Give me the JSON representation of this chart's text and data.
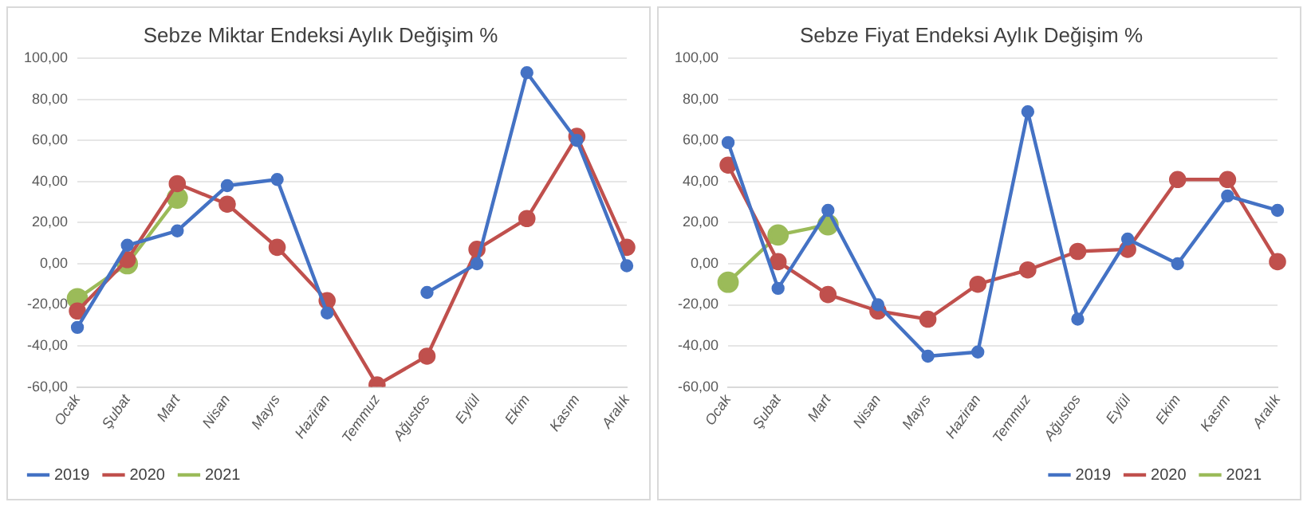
{
  "chart_data": [
    {
      "type": "line",
      "title": "Sebze Miktar Endeksi Aylık Değişim %",
      "categories": [
        "Ocak",
        "Şubat",
        "Mart",
        "Nisan",
        "Mayıs",
        "Haziran",
        "Temmuz",
        "Ağustos",
        "Eylül",
        "Ekim",
        "Kasım",
        "Aralık"
      ],
      "series": [
        {
          "name": "2019",
          "color": "#4472c4",
          "values": [
            -31,
            9,
            16,
            38,
            41,
            -24,
            null,
            -14,
            0,
            93,
            60,
            -1
          ]
        },
        {
          "name": "2020",
          "color": "#c0504d",
          "values": [
            -23,
            2,
            39,
            29,
            8,
            -18,
            -59,
            -45,
            7,
            22,
            62,
            8
          ]
        },
        {
          "name": "2021",
          "color": "#9bbb59",
          "values": [
            -17,
            0,
            32,
            null,
            null,
            null,
            null,
            null,
            null,
            null,
            null,
            null
          ]
        }
      ],
      "ylim": [
        -60,
        100
      ],
      "yticks": [
        {
          "value": -60,
          "label": "-60,00"
        },
        {
          "value": -40,
          "label": "-40,00"
        },
        {
          "value": -20,
          "label": "-20,00"
        },
        {
          "value": 0,
          "label": "0,00"
        },
        {
          "value": 20,
          "label": "20,00"
        },
        {
          "value": 40,
          "label": "40,00"
        },
        {
          "value": 60,
          "label": "60,00"
        },
        {
          "value": 80,
          "label": "80,00"
        },
        {
          "value": 100,
          "label": "100,00"
        }
      ],
      "grid": "y",
      "legend": "bottom left",
      "marker": "circle",
      "line_style": "solid"
    },
    {
      "type": "line",
      "title": "Sebze Fiyat Endeksi Aylık Değişim %",
      "categories": [
        "Ocak",
        "Şubat",
        "Mart",
        "Nisan",
        "Mayıs",
        "Haziran",
        "Temmuz",
        "Ağustos",
        "Eylül",
        "Ekim",
        "Kasım",
        "Aralık"
      ],
      "series": [
        {
          "name": "2019",
          "color": "#4472c4",
          "values": [
            59,
            -12,
            26,
            -20,
            -45,
            -43,
            74,
            -27,
            12,
            0,
            33,
            26
          ]
        },
        {
          "name": "2020",
          "color": "#c0504d",
          "values": [
            48,
            1,
            -15,
            -23,
            -27,
            -10,
            -3,
            6,
            7,
            41,
            41,
            1
          ]
        },
        {
          "name": "2021",
          "color": "#9bbb59",
          "values": [
            -9,
            14,
            19,
            null,
            null,
            null,
            null,
            null,
            null,
            null,
            null,
            null
          ]
        }
      ],
      "ylim": [
        -60,
        100
      ],
      "yticks": [
        {
          "value": -60,
          "label": "-60,00"
        },
        {
          "value": -40,
          "label": "-40,00"
        },
        {
          "value": -20,
          "label": "-20,00"
        },
        {
          "value": 0,
          "label": "0,00"
        },
        {
          "value": 20,
          "label": "20,00"
        },
        {
          "value": 40,
          "label": "40,00"
        },
        {
          "value": 60,
          "label": "60,00"
        },
        {
          "value": 80,
          "label": "80,00"
        },
        {
          "value": 100,
          "label": "100,00"
        }
      ],
      "grid": "y",
      "legend": "bottom right",
      "marker": "circle",
      "line_style": "solid"
    }
  ]
}
